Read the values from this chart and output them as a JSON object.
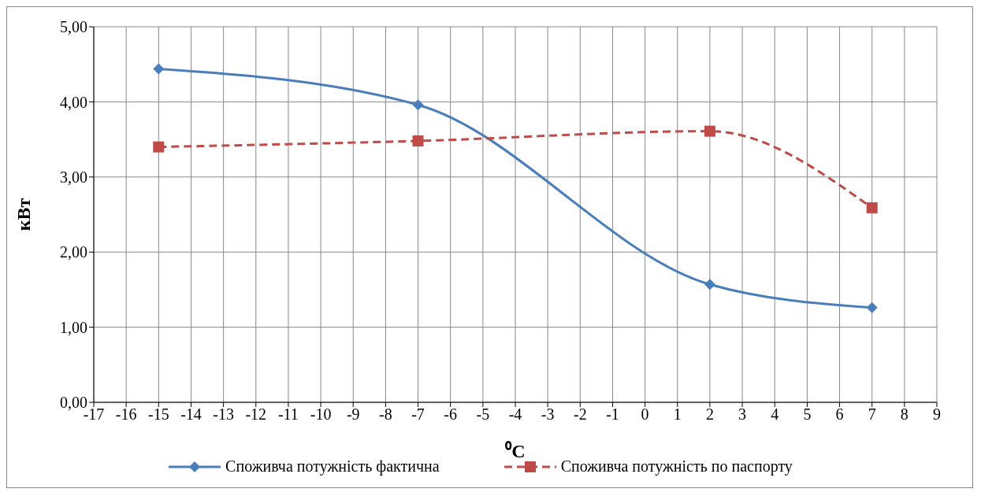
{
  "chart_data": {
    "type": "line",
    "xlabel": "⁰C",
    "ylabel": "кВт",
    "x": [
      -15,
      -7,
      2,
      7
    ],
    "series": [
      {
        "name": "Споживча потужність фактична",
        "color": "#4a7ebb",
        "values": [
          4.44,
          3.96,
          1.57,
          1.26
        ],
        "marker": "diamond",
        "line_style": "solid"
      },
      {
        "name": "Споживча потужність по паспорту",
        "color": "#be4b48",
        "values": [
          3.4,
          3.48,
          3.61,
          2.59
        ],
        "marker": "square",
        "line_style": "dashed"
      }
    ],
    "xlim": [
      -17,
      9
    ],
    "xticks": [
      -17,
      -16,
      -15,
      -14,
      -13,
      -12,
      -11,
      -10,
      -9,
      -8,
      -7,
      -6,
      -5,
      -4,
      -3,
      -2,
      -1,
      0,
      1,
      2,
      3,
      4,
      5,
      6,
      7,
      8,
      9
    ],
    "ylim": [
      0,
      5
    ],
    "yticks": [
      {
        "value": 0,
        "label": "0,00"
      },
      {
        "value": 1,
        "label": "1,00"
      },
      {
        "value": 2,
        "label": "2,00"
      },
      {
        "value": 3,
        "label": "3,00"
      },
      {
        "value": 4,
        "label": "4,00"
      },
      {
        "value": 5,
        "label": "5,00"
      }
    ],
    "grid": true,
    "legend": "bottom"
  }
}
